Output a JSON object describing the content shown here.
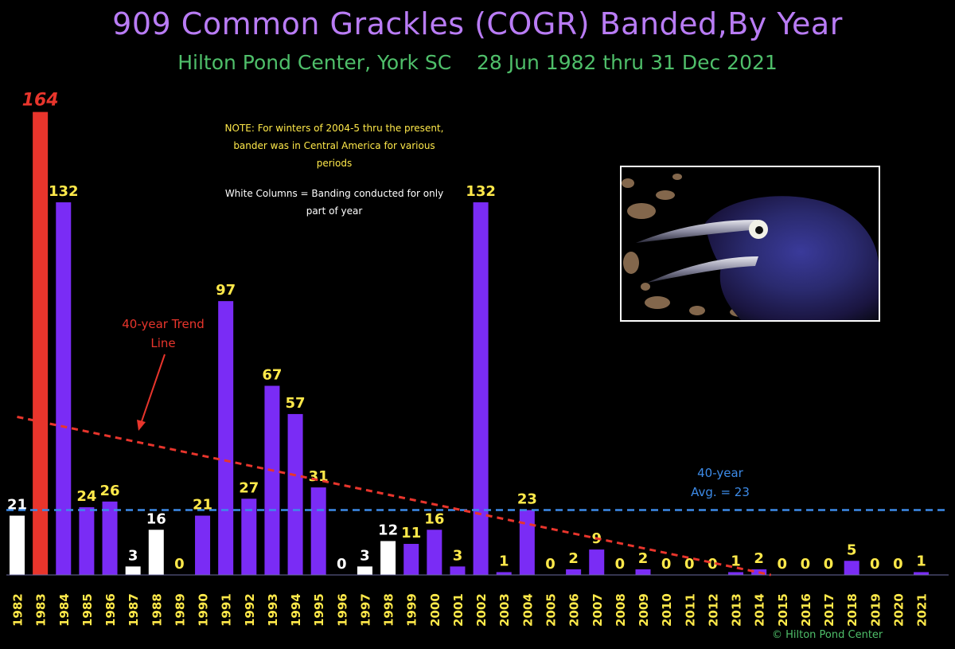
{
  "header": {
    "title": "909 Common Grackles (COGR) Banded,By Year",
    "subtitle": "Hilton Pond Center, York SC    28 Jun 1982 thru 31 Dec 2021"
  },
  "notes": {
    "winter_note": "NOTE: For winters of 2004-5 thru the present, bander was in Central America for various periods",
    "white_columns_note": "White Columns = Banding conducted for only part of year",
    "trend_label": "40-year Trend Line",
    "avg_label_line1": "40-year",
    "avg_label_line2": "Avg. = 23",
    "copyright": "© Hilton Pond Center"
  },
  "colors": {
    "full_year_bar": "#7a2cf5",
    "partial_year_bar": "#ffffff",
    "max_bar": "#e8352c",
    "full_year_label": "#ffe94a",
    "partial_year_label": "#ffffff",
    "max_label": "#e8352c",
    "trend_line": "#e8352c",
    "average_line": "#3d8be8",
    "year_label": "#ffe94a"
  },
  "chart_data": {
    "type": "bar",
    "title": "909 Common Grackles (COGR) Banded,By Year",
    "subtitle": "Hilton Pond Center, York SC    28 Jun 1982 thru 31 Dec 2021",
    "xlabel": "",
    "ylabel": "",
    "ylim": [
      0,
      170
    ],
    "grid": false,
    "categories": [
      "1982",
      "1983",
      "1984",
      "1985",
      "1986",
      "1987",
      "1988",
      "1989",
      "1990",
      "1991",
      "1992",
      "1993",
      "1994",
      "1995",
      "1996",
      "1997",
      "1998",
      "1999",
      "2000",
      "2001",
      "2002",
      "2003",
      "2004",
      "2005",
      "2006",
      "2007",
      "2008",
      "2009",
      "2010",
      "2011",
      "2012",
      "2013",
      "2014",
      "2015",
      "2016",
      "2017",
      "2018",
      "2019",
      "2020",
      "2021"
    ],
    "values": [
      21,
      164,
      132,
      24,
      26,
      3,
      16,
      0,
      21,
      97,
      27,
      67,
      57,
      31,
      0,
      3,
      12,
      11,
      16,
      3,
      132,
      1,
      23,
      0,
      2,
      9,
      0,
      2,
      0,
      0,
      0,
      1,
      2,
      0,
      0,
      0,
      5,
      0,
      0,
      1
    ],
    "partial_year": [
      "1982",
      "1987",
      "1988",
      "1996",
      "1997",
      "1998"
    ],
    "max_year": "1983",
    "average": 23,
    "trend_line": {
      "start": {
        "x": "1982",
        "y": 56
      },
      "end": {
        "x": "2014",
        "y": 0
      }
    },
    "annotations": [
      "40-year Trend Line",
      "40-year Avg. = 23"
    ]
  }
}
